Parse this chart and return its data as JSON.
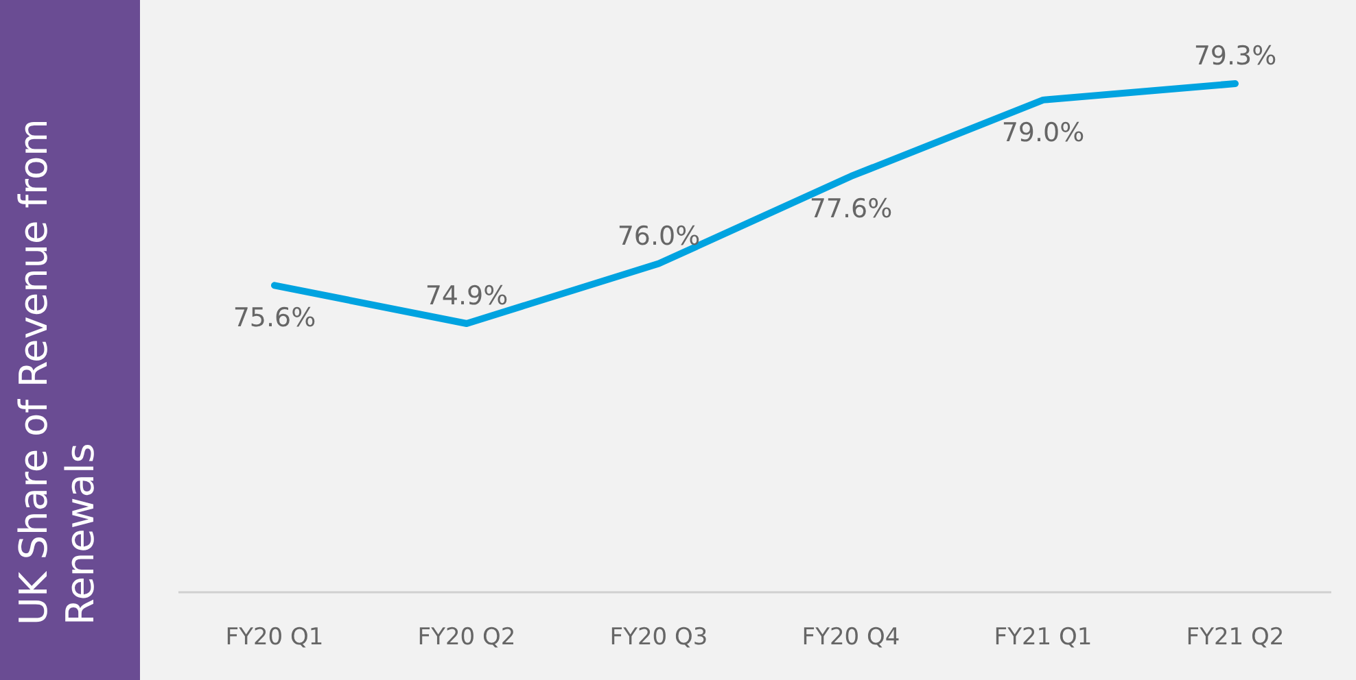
{
  "chart_data": {
    "type": "line",
    "ylabel": "UK Share of Revenue from Renewals",
    "categories": [
      "FY20 Q1",
      "FY20 Q2",
      "FY20 Q3",
      "FY20 Q4",
      "FY21 Q1",
      "FY21 Q2"
    ],
    "series": [
      {
        "color": "#00a3e0",
        "values": [
          75.6,
          74.9,
          76.0,
          77.6,
          79.0,
          79.3
        ],
        "value_labels": [
          "75.6%",
          "74.9%",
          "76.0%",
          "77.6%",
          "79.0%",
          "79.3%"
        ]
      }
    ],
    "marker": "none",
    "line_style": "solid"
  }
}
